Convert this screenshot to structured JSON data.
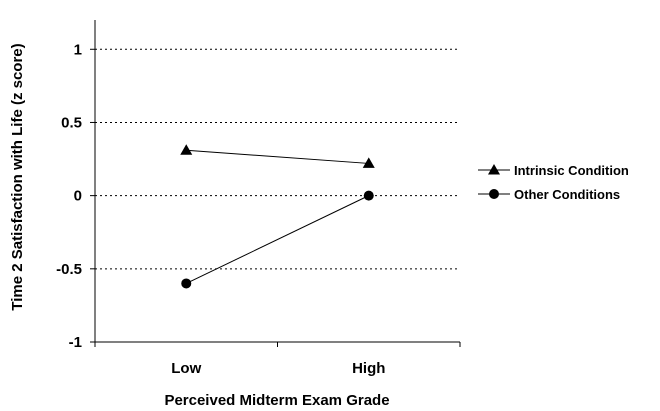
{
  "chart_data": {
    "type": "line",
    "categories": [
      "Low",
      "High"
    ],
    "series": [
      {
        "name": "Intrinsic Condition",
        "marker": "triangle",
        "values": [
          0.31,
          0.22
        ]
      },
      {
        "name": "Other Conditions",
        "marker": "circle",
        "values": [
          -0.6,
          0.0
        ]
      }
    ],
    "xlabel": "Perceived Midterm Exam Grade",
    "ylabel": "Time 2 Satisfaction with Life (z score)",
    "ylim": [
      -1,
      1.2
    ],
    "yticks": [
      1,
      0.5,
      0,
      -0.5,
      -1
    ],
    "ytick_labels": [
      "1",
      "0.5",
      "0",
      "-0.5",
      "-1"
    ],
    "gridlines": "dotted horizontal at major ticks",
    "legend_position": "right"
  }
}
